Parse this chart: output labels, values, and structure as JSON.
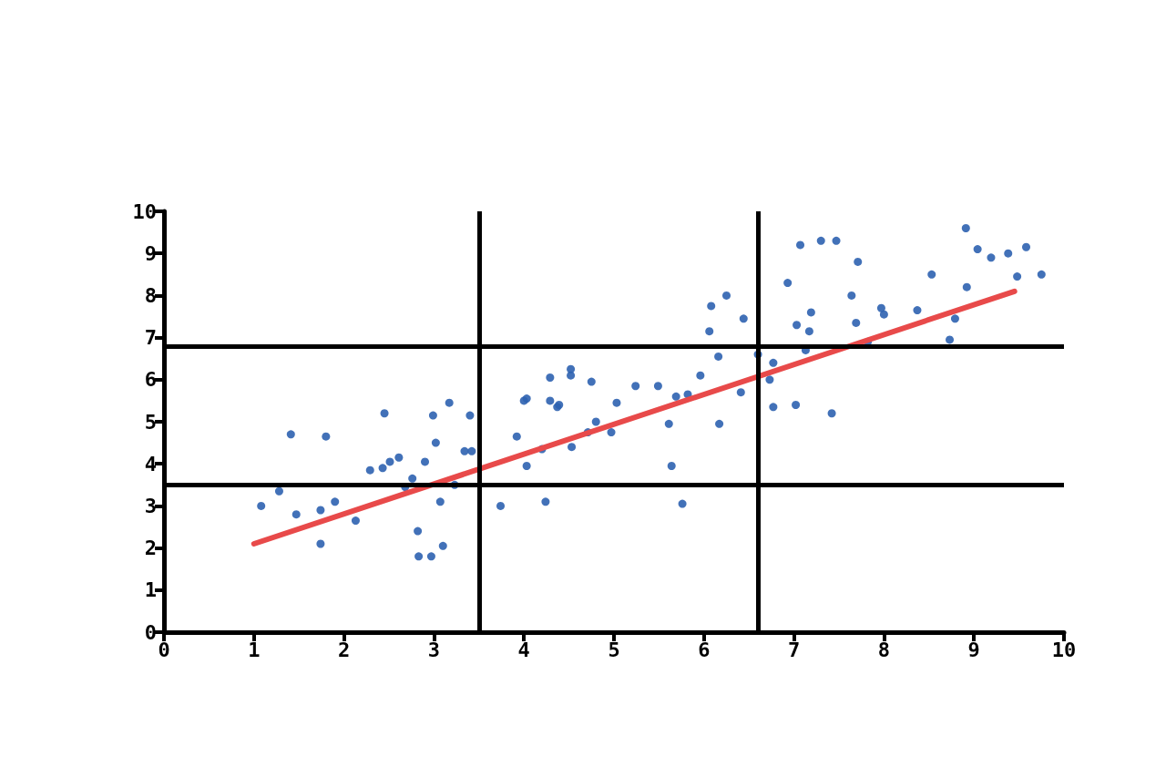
{
  "chart_data": {
    "type": "scatter",
    "xlim": [
      0,
      10
    ],
    "ylim": [
      0,
      10
    ],
    "xticks": [
      0,
      1,
      2,
      3,
      4,
      5,
      6,
      7,
      8,
      9,
      10
    ],
    "yticks": [
      0,
      1,
      2,
      3,
      4,
      5,
      6,
      7,
      8,
      9,
      10
    ],
    "grid": false,
    "marker": "circle",
    "ref_lines": [
      {
        "axis": "x",
        "value": 3.5,
        "color": "#000000"
      },
      {
        "axis": "x",
        "value": 6.6,
        "color": "#000000"
      },
      {
        "axis": "y",
        "value": 3.5,
        "color": "#000000"
      },
      {
        "axis": "y",
        "value": 6.8,
        "color": "#000000"
      }
    ],
    "series": [
      {
        "color": "#2e62b0",
        "x": [
          1.08,
          1.28,
          1.41,
          1.47,
          1.74,
          1.8,
          1.74,
          1.9,
          2.13,
          2.29,
          2.43,
          2.51,
          2.45,
          2.61,
          2.68,
          2.82,
          2.83,
          2.97,
          2.99,
          3.02,
          3.07,
          3.1,
          3.17,
          3.34,
          3.4,
          3.42,
          2.9,
          2.76,
          3.23,
          3.74,
          3.92,
          4.0,
          4.03,
          4.2,
          4.29,
          4.29,
          4.24,
          4.37,
          4.52,
          4.52,
          4.53,
          4.75,
          4.71,
          4.8,
          4.97,
          5.03,
          5.24,
          5.49,
          5.61,
          5.64,
          5.76,
          5.82,
          5.96,
          6.06,
          6.16,
          6.17,
          6.25,
          6.41,
          6.44,
          6.6,
          6.77,
          6.93,
          7.07,
          7.19,
          7.13,
          7.3,
          7.42,
          7.47,
          7.64,
          7.71,
          7.69,
          7.82,
          8.0,
          8.37,
          8.53,
          8.79,
          8.73,
          8.91,
          9.04,
          9.19,
          9.38,
          9.58,
          9.48,
          9.75,
          8.92,
          7.97,
          7.03,
          6.73,
          7.17,
          6.77,
          7.02,
          6.08,
          5.69,
          4.03,
          4.39
        ],
        "values": [
          3.0,
          3.35,
          4.7,
          2.8,
          2.9,
          4.65,
          2.1,
          3.1,
          2.65,
          3.85,
          3.9,
          4.05,
          5.2,
          4.15,
          3.45,
          2.4,
          1.8,
          1.8,
          5.15,
          4.5,
          3.1,
          2.05,
          5.45,
          4.3,
          5.15,
          4.3,
          4.05,
          3.65,
          3.5,
          3.0,
          4.65,
          5.5,
          3.95,
          4.35,
          6.05,
          5.5,
          3.1,
          5.35,
          6.25,
          6.1,
          4.4,
          5.95,
          4.75,
          5.0,
          4.75,
          5.45,
          5.85,
          5.85,
          4.95,
          3.95,
          3.05,
          5.65,
          6.1,
          7.15,
          6.55,
          4.95,
          8.0,
          5.7,
          7.45,
          6.6,
          6.4,
          8.3,
          9.2,
          7.6,
          6.7,
          9.3,
          5.2,
          9.3,
          8.0,
          8.8,
          7.35,
          6.9,
          7.55,
          7.65,
          8.5,
          7.45,
          6.95,
          9.6,
          9.1,
          8.9,
          9.0,
          9.15,
          8.45,
          8.5,
          8.2,
          7.7,
          7.3,
          6.0,
          7.15,
          5.35,
          5.4,
          7.75,
          5.6,
          5.55,
          5.4
        ]
      },
      {
        "type": "line",
        "color": "#e84a4a",
        "x": [
          1,
          9.45
        ],
        "values": [
          2.1,
          8.1
        ],
        "marker": "none"
      }
    ]
  }
}
